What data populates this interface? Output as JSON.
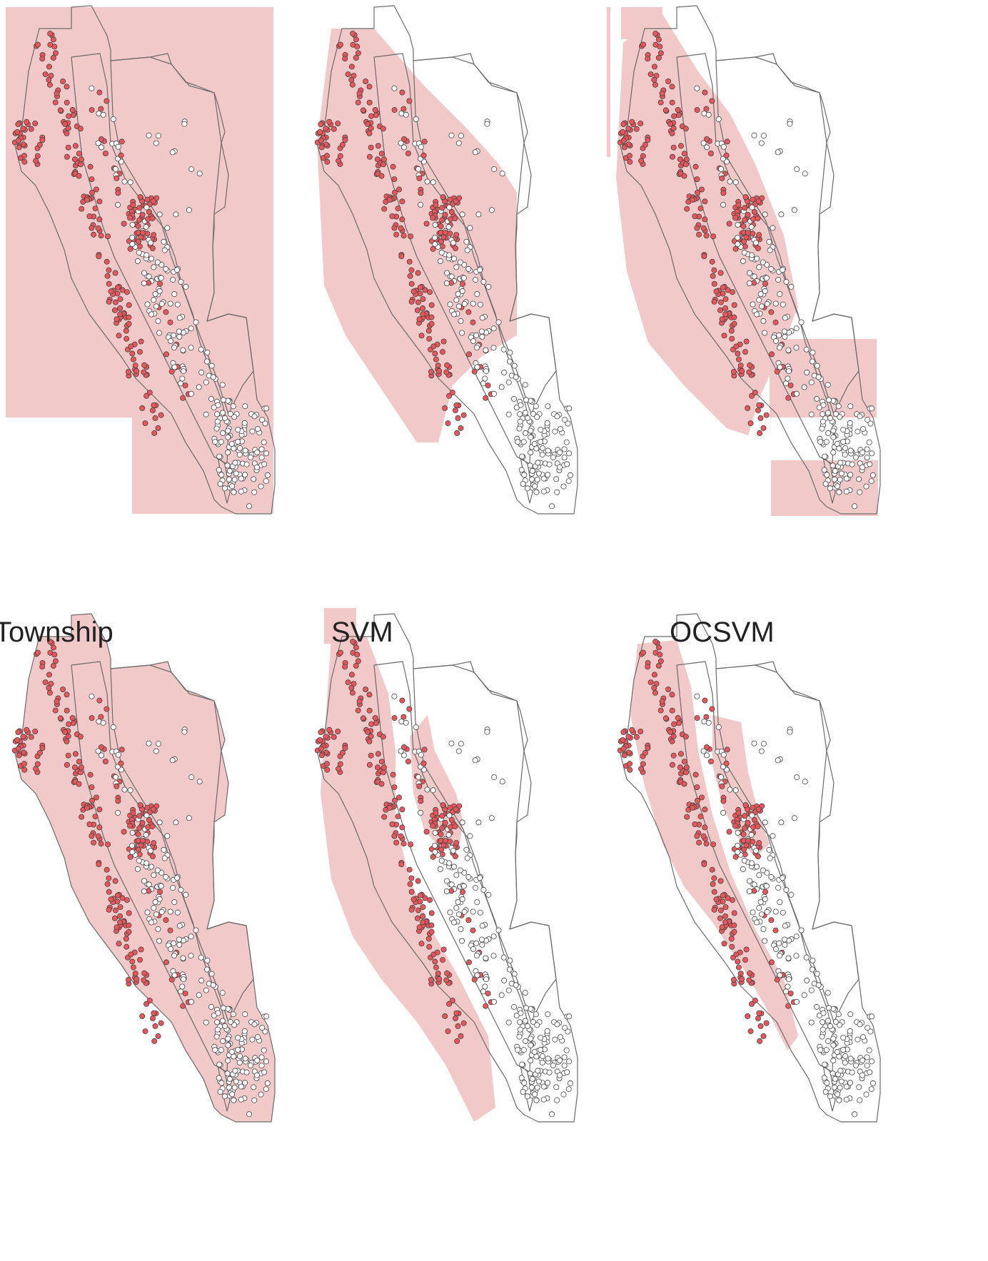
{
  "labels": [
    "Township",
    "SVM",
    "OCSVM"
  ],
  "colors": {
    "region_fill": "#f2c9c9",
    "outline": "#6b6b6b",
    "positive_point": "#e8555a",
    "negative_point": "#ffffff",
    "point_stroke": "#444444"
  },
  "panels": [
    {
      "id": "top-township",
      "method": "Township",
      "style": "rectangles"
    },
    {
      "id": "top-svm",
      "method": "SVM",
      "style": "coastal-band"
    },
    {
      "id": "top-ocsvm",
      "method": "OCSVM",
      "style": "coastal-band-blocky"
    },
    {
      "id": "bottom-township",
      "method": "Township",
      "style": "township-polygons"
    },
    {
      "id": "bottom-svm",
      "method": "SVM",
      "style": "coastal-band-inner"
    },
    {
      "id": "bottom-ocsvm",
      "method": "OCSVM",
      "style": "coastal-band-narrow"
    }
  ]
}
